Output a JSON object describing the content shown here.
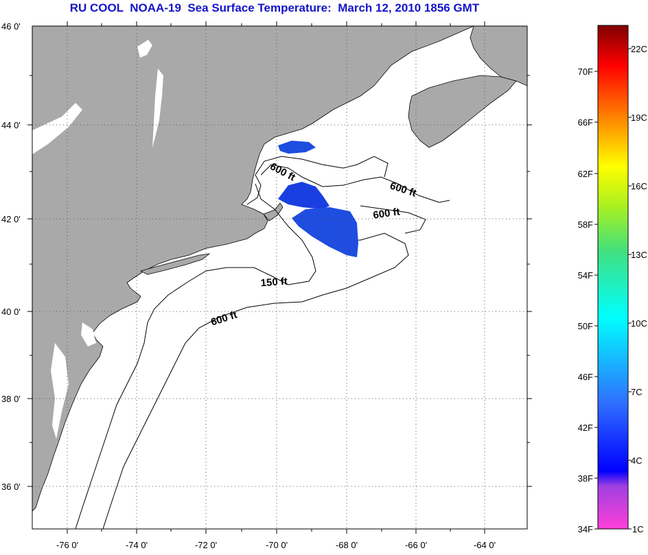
{
  "title": "RU COOL  NOAA-19  Sea Surface Temperature:  March 12, 2010 1856 GMT",
  "map": {
    "lon_labels": [
      "-76 0'",
      "-74 0'",
      "-72 0'",
      "-70 0'",
      "-68 0'",
      "-66 0'",
      "-64 0'"
    ],
    "lat_labels": [
      "46 0'",
      "44 0'",
      "42 0'",
      "40 0'",
      "38 0'",
      "36 0'"
    ],
    "contour_labels": [
      "600 ft",
      "600 ft",
      "600 ft",
      "150 ft",
      "600 ft"
    ],
    "land_color": "#a9a9a9",
    "sst_color": "#1e4de0"
  },
  "colorbar": {
    "fahrenheit_labels": [
      "70F",
      "66F",
      "62F",
      "58F",
      "54F",
      "50F",
      "46F",
      "42F",
      "38F",
      "34F"
    ],
    "celsius_labels": [
      "22C",
      "19C",
      "16C",
      "13C",
      "10C",
      "7C",
      "4C",
      "1C"
    ],
    "gradient": [
      "#ff3fd9",
      "#a040e0",
      "#2020ff",
      "#1f6fff",
      "#00ffff",
      "#3fe88a",
      "#b0f020",
      "#ffff00",
      "#ff7f00",
      "#ff0000",
      "#d00000",
      "#8b0000"
    ]
  }
}
